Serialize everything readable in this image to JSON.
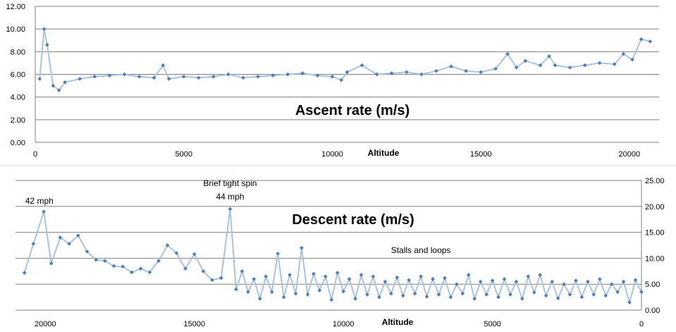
{
  "chart_data": [
    {
      "type": "line",
      "title": "Ascent rate (m/s)",
      "xlabel": "Altitude",
      "ylabel": "",
      "xlim": [
        0,
        21000
      ],
      "ylim": [
        0,
        12
      ],
      "x_ticks": [
        "0",
        "5000",
        "10000",
        "15000",
        "20000"
      ],
      "y_ticks": [
        "0.00",
        "2.00",
        "4.00",
        "6.00",
        "8.00",
        "10.00",
        "12.00"
      ],
      "x_tick_values": [
        0,
        5000,
        10000,
        15000,
        20000
      ],
      "y_tick_values": [
        0,
        2,
        4,
        6,
        8,
        10,
        12
      ],
      "grid": true,
      "axis_side": "left",
      "x_reversed": false,
      "series": [
        {
          "name": "Ascent rate (m/s)",
          "x": [
            150,
            300,
            400,
            600,
            800,
            1000,
            1500,
            2000,
            2500,
            3000,
            3500,
            4000,
            4300,
            4500,
            5000,
            5500,
            6000,
            6500,
            7000,
            7500,
            8000,
            8500,
            9000,
            9500,
            10000,
            10300,
            10500,
            11000,
            11500,
            12000,
            12500,
            13000,
            13500,
            14000,
            14500,
            15000,
            15500,
            15900,
            16200,
            16500,
            17000,
            17300,
            17500,
            18000,
            18500,
            19000,
            19500,
            19800,
            20100,
            20400,
            20700
          ],
          "y": [
            5.6,
            10.0,
            8.6,
            5.0,
            4.6,
            5.3,
            5.6,
            5.8,
            5.9,
            6.0,
            5.8,
            5.7,
            6.8,
            5.6,
            5.8,
            5.7,
            5.8,
            6.0,
            5.7,
            5.8,
            5.9,
            6.0,
            6.1,
            5.9,
            5.8,
            5.5,
            6.2,
            6.8,
            6.0,
            6.1,
            6.2,
            6.0,
            6.3,
            6.7,
            6.3,
            6.2,
            6.5,
            7.8,
            6.6,
            7.2,
            6.8,
            7.6,
            6.8,
            6.6,
            6.8,
            7.0,
            6.9,
            7.8,
            7.3,
            9.1,
            8.9
          ]
        }
      ]
    },
    {
      "type": "line",
      "title": "Descent rate (m/s)",
      "xlabel": "Altitude",
      "ylabel": "",
      "xlim": [
        0,
        21000
      ],
      "ylim": [
        0,
        25
      ],
      "x_ticks": [
        "20000",
        "15000",
        "10000",
        "5000",
        "0"
      ],
      "y_ticks": [
        "0.00",
        "5.00",
        "10.00",
        "15.00",
        "20.00",
        "25.00"
      ],
      "x_tick_values": [
        20000,
        15000,
        10000,
        5000,
        0
      ],
      "y_tick_values": [
        0,
        5,
        10,
        15,
        20,
        25
      ],
      "grid": true,
      "axis_side": "right",
      "x_reversed": true,
      "annotations": [
        {
          "text": "42 mph",
          "x": 20200,
          "y": 20.5
        },
        {
          "text": "Brief tight spin",
          "x": 13800,
          "y": 23.9
        },
        {
          "text": "44 mph",
          "x": 13800,
          "y": 21.3
        },
        {
          "text": "Stalls and loops",
          "x": 7400,
          "y": 11.0
        }
      ],
      "series": [
        {
          "name": "Descent rate (m/s)",
          "x": [
            20700,
            20400,
            20050,
            19800,
            19500,
            19200,
            18900,
            18600,
            18300,
            18000,
            17700,
            17400,
            17100,
            16800,
            16500,
            16200,
            15900,
            15600,
            15300,
            15000,
            14700,
            14400,
            14100,
            13800,
            13600,
            13400,
            13200,
            13000,
            12800,
            12600,
            12400,
            12200,
            12000,
            11800,
            11600,
            11400,
            11200,
            11000,
            10800,
            10600,
            10400,
            10200,
            10000,
            9800,
            9600,
            9400,
            9200,
            9000,
            8800,
            8600,
            8400,
            8200,
            8000,
            7800,
            7600,
            7400,
            7200,
            7000,
            6800,
            6600,
            6400,
            6200,
            6000,
            5800,
            5600,
            5400,
            5200,
            5000,
            4800,
            4600,
            4400,
            4200,
            4000,
            3800,
            3600,
            3400,
            3200,
            3000,
            2800,
            2600,
            2400,
            2200,
            2000,
            1800,
            1600,
            1400,
            1200,
            1000,
            800,
            600,
            400,
            200,
            0
          ],
          "y": [
            7.2,
            12.8,
            19.0,
            9.0,
            14.0,
            12.8,
            14.4,
            11.3,
            9.7,
            9.5,
            8.5,
            8.4,
            7.3,
            8.0,
            7.3,
            9.5,
            12.5,
            11.0,
            8.0,
            10.8,
            7.5,
            5.8,
            6.2,
            19.5,
            4.0,
            7.5,
            3.5,
            6.0,
            2.2,
            6.5,
            3.5,
            10.9,
            2.5,
            6.8,
            3.2,
            12.0,
            3.0,
            7.0,
            3.8,
            6.5,
            2.0,
            7.2,
            3.6,
            6.0,
            2.2,
            6.8,
            3.0,
            6.5,
            2.5,
            5.5,
            3.2,
            6.3,
            2.8,
            5.8,
            3.2,
            6.5,
            2.6,
            6.0,
            3.0,
            6.2,
            2.5,
            5.0,
            3.2,
            6.8,
            2.2,
            5.5,
            3.0,
            5.7,
            2.5,
            6.0,
            3.0,
            5.5,
            2.2,
            6.5,
            3.4,
            6.8,
            2.8,
            5.5,
            2.3,
            5.0,
            3.0,
            5.7,
            2.5,
            5.5,
            3.0,
            6.0,
            2.8,
            5.0,
            3.5,
            5.5,
            1.5,
            5.8,
            3.5
          ]
        }
      ]
    }
  ]
}
